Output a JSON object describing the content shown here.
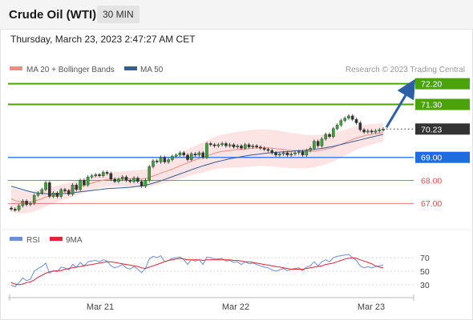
{
  "header": {
    "title": "Crude Oil (WTI)",
    "interval": "30 MIN",
    "timestamp": "Thursday, March 23, 2023 2:47:27 AM CET"
  },
  "legend": {
    "ma20": "MA 20 + Bollinger Bands",
    "ma50": "MA 50",
    "credit": "Research © 2023 Trading Central",
    "rsi": "RSI",
    "rsi_ma": "9MA"
  },
  "colors": {
    "ma20": "#f28b82",
    "ma50": "#355d95",
    "bands_fill": "#fde4e4",
    "resistance": "#4aa30b",
    "pivot": "#4a7ee8",
    "support": "#d9534f",
    "last_price": "#333333",
    "rsi": "#6b8fd6",
    "rsi_ma": "#e0243a",
    "arrow": "#2d5ea8"
  },
  "chart_data": {
    "type": "candlestick",
    "x_axis_labels": [
      "Mar 21",
      "Mar 22",
      "Mar 23"
    ],
    "y_range": [
      66.0,
      72.5
    ],
    "last_price": 70.23,
    "levels": [
      {
        "value": 72.2,
        "label": "72.20",
        "kind": "resistance"
      },
      {
        "value": 71.3,
        "label": "71.30",
        "kind": "resistance"
      },
      {
        "value": 70.23,
        "label": "70.23",
        "kind": "last"
      },
      {
        "value": 69.0,
        "label": "69.00",
        "kind": "pivot"
      },
      {
        "value": 68.0,
        "label": "68.00",
        "kind": "support"
      },
      {
        "value": 67.0,
        "label": "67.00",
        "kind": "support"
      }
    ],
    "close": [
      66.75,
      66.72,
      66.9,
      67.1,
      66.95,
      67.0,
      67.35,
      67.45,
      67.6,
      67.9,
      67.3,
      67.45,
      67.3,
      67.6,
      67.55,
      67.4,
      67.8,
      67.6,
      68.0,
      67.8,
      68.15,
      68.2,
      68.25,
      68.2,
      68.35,
      68.3,
      68.05,
      67.95,
      68.05,
      68.15,
      68.0,
      67.95,
      68.1,
      67.95,
      67.75,
      68.0,
      68.6,
      68.85,
      68.8,
      69.0,
      68.8,
      68.9,
      69.05,
      69.1,
      69.2,
      69.1,
      68.9,
      69.15,
      69.1,
      69.2,
      69.0,
      69.6,
      69.55,
      69.5,
      69.55,
      69.6,
      69.5,
      69.55,
      69.45,
      69.5,
      69.4,
      69.55,
      69.45,
      69.5,
      69.45,
      69.4,
      69.35,
      69.3,
      69.2,
      69.1,
      69.15,
      69.2,
      69.1,
      69.15,
      69.2,
      69.25,
      69.1,
      69.3,
      69.4,
      69.7,
      69.5,
      69.8,
      70.0,
      69.9,
      70.25,
      70.4,
      70.6,
      70.7,
      70.8,
      70.65,
      70.5,
      70.2,
      70.1,
      70.15,
      70.1,
      70.15,
      70.2,
      70.23
    ],
    "ma20": [
      67.2,
      67.12,
      67.08,
      67.06,
      67.05,
      67.06,
      67.1,
      67.15,
      67.2,
      67.28,
      67.32,
      67.38,
      67.42,
      67.47,
      67.52,
      67.56,
      67.62,
      67.67,
      67.73,
      67.78,
      67.83,
      67.88,
      67.93,
      67.97,
      68.01,
      68.04,
      68.06,
      68.06,
      68.06,
      68.07,
      68.07,
      68.07,
      68.08,
      68.07,
      68.07,
      68.08,
      68.13,
      68.19,
      68.25,
      68.32,
      68.37,
      68.43,
      68.49,
      68.56,
      68.63,
      68.7,
      68.76,
      68.83,
      68.89,
      68.95,
      68.99,
      69.06,
      69.12,
      69.18,
      69.23,
      69.26,
      69.28,
      69.3,
      69.32,
      69.34,
      69.35,
      69.37,
      69.38,
      69.4,
      69.41,
      69.42,
      69.42,
      69.41,
      69.4,
      69.38,
      69.36,
      69.34,
      69.32,
      69.3,
      69.29,
      69.28,
      69.26,
      69.25,
      69.25,
      69.27,
      69.29,
      69.32,
      69.36,
      69.39,
      69.44,
      69.5,
      69.57,
      69.64,
      69.71,
      69.78,
      69.84,
      69.89,
      69.93,
      69.97,
      70.0,
      70.03,
      70.05,
      70.08
    ],
    "ma50": [
      67.75,
      67.7,
      67.65,
      67.6,
      67.55,
      67.51,
      67.47,
      67.45,
      67.43,
      67.42,
      67.41,
      67.41,
      67.41,
      67.42,
      67.43,
      67.44,
      67.46,
      67.48,
      67.5,
      67.52,
      67.54,
      67.56,
      67.58,
      67.6,
      67.62,
      67.64,
      67.65,
      67.66,
      67.67,
      67.68,
      67.69,
      67.7,
      67.72,
      67.74,
      67.76,
      67.79,
      67.83,
      67.88,
      67.93,
      67.98,
      68.04,
      68.1,
      68.16,
      68.22,
      68.28,
      68.34,
      68.4,
      68.46,
      68.52,
      68.58,
      68.63,
      68.68,
      68.73,
      68.78,
      68.82,
      68.86,
      68.9,
      68.94,
      68.97,
      69.0,
      69.03,
      69.06,
      69.09,
      69.11,
      69.13,
      69.15,
      69.17,
      69.19,
      69.2,
      69.22,
      69.23,
      69.24,
      69.25,
      69.26,
      69.28,
      69.29,
      69.3,
      69.31,
      69.33,
      69.35,
      69.37,
      69.39,
      69.42,
      69.45,
      69.48,
      69.52,
      69.56,
      69.6,
      69.64,
      69.68,
      69.72,
      69.76,
      69.8,
      69.84,
      69.88,
      69.92,
      69.96,
      70.0
    ],
    "rsi": {
      "y_ticks": [
        70,
        50,
        30
      ],
      "y_range": [
        18,
        82
      ],
      "values": [
        29,
        27,
        33,
        40,
        36,
        38,
        50,
        54,
        57,
        62,
        47,
        51,
        49,
        56,
        55,
        52,
        60,
        56,
        63,
        58,
        64,
        65,
        66,
        64,
        67,
        65,
        58,
        55,
        57,
        60,
        55,
        53,
        57,
        53,
        48,
        54,
        68,
        72,
        70,
        73,
        64,
        66,
        69,
        70,
        71,
        67,
        60,
        67,
        65,
        67,
        60,
        71,
        70,
        68,
        68,
        69,
        65,
        66,
        63,
        64,
        60,
        64,
        61,
        62,
        60,
        58,
        56,
        55,
        52,
        50,
        52,
        54,
        51,
        53,
        54,
        55,
        51,
        56,
        58,
        64,
        58,
        64,
        67,
        64,
        70,
        72,
        73,
        74,
        75,
        70,
        66,
        58,
        55,
        57,
        55,
        57,
        58,
        59
      ],
      "ma": [
        33,
        31,
        30,
        31,
        33,
        34,
        37,
        41,
        44,
        47,
        49,
        50,
        51,
        51,
        53,
        54,
        55,
        56,
        57,
        58,
        59,
        60,
        61,
        62,
        63,
        64,
        64,
        63,
        62,
        61,
        60,
        59,
        58,
        57,
        55,
        54,
        56,
        58,
        60,
        62,
        64,
        66,
        67,
        68,
        69,
        68,
        67,
        67,
        67,
        67,
        66,
        67,
        67,
        67,
        67,
        67,
        67,
        67,
        66,
        66,
        65,
        64,
        64,
        63,
        62,
        61,
        60,
        59,
        58,
        57,
        56,
        55,
        54,
        53,
        53,
        53,
        53,
        54,
        55,
        56,
        57,
        58,
        60,
        61,
        62,
        64,
        66,
        68,
        69,
        70,
        69,
        67,
        65,
        63,
        61,
        58,
        56,
        55
      ]
    }
  }
}
